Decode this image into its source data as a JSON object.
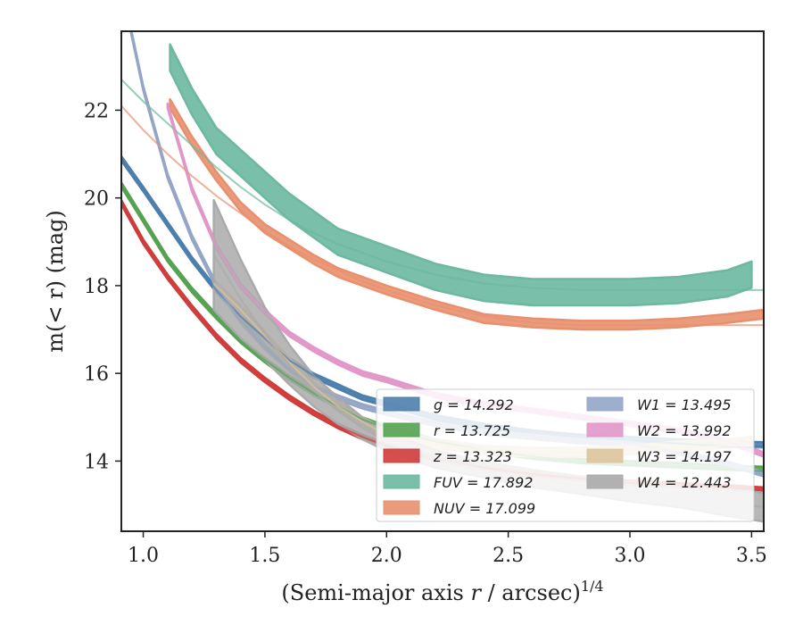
{
  "chart_data": {
    "type": "line",
    "xlabel_main": "(Semi-major axis ",
    "xlabel_var": "r",
    "xlabel_unit": " / arcsec)",
    "xlabel_sup": "1/4",
    "ylabel_main": "m(< r) (mag)",
    "xlim": [
      0.91,
      3.55
    ],
    "ylim": [
      23.8,
      12.4
    ],
    "xticks": [
      1.0,
      1.5,
      2.0,
      2.5,
      3.0,
      3.5
    ],
    "xtick_labels": [
      "1.0",
      "1.5",
      "2.0",
      "2.5",
      "3.0",
      "3.5"
    ],
    "yticks": [
      14,
      16,
      18,
      20,
      22
    ],
    "ytick_labels": [
      "14",
      "16",
      "18",
      "20",
      "22"
    ],
    "grid": false,
    "legend_position": "lower-right",
    "series": [
      {
        "name": "g",
        "legend_label": "g = 14.292",
        "color": "#4c7fac",
        "x": [
          0.91,
          1.0,
          1.1,
          1.2,
          1.3,
          1.4,
          1.5,
          1.6,
          1.7,
          1.8,
          1.9,
          2.0,
          2.2,
          2.4,
          2.6,
          2.8,
          3.0,
          3.2,
          3.4,
          3.55
        ],
        "y": [
          20.9,
          20.2,
          19.4,
          18.6,
          17.9,
          17.3,
          16.8,
          16.3,
          15.95,
          15.7,
          15.45,
          15.3,
          15.0,
          14.8,
          14.65,
          14.55,
          14.5,
          14.45,
          14.4,
          14.38
        ],
        "model": [
          20.9,
          20.2,
          19.4,
          18.6,
          17.9,
          17.3,
          16.8,
          16.3,
          15.95,
          15.7,
          15.45,
          15.3,
          15.0,
          14.8,
          14.65,
          14.55,
          14.48,
          14.4,
          14.33,
          14.3
        ],
        "band": 0.05
      },
      {
        "name": "r",
        "legend_label": "r = 13.725",
        "color": "#55a252",
        "x": [
          0.91,
          1.0,
          1.1,
          1.2,
          1.3,
          1.4,
          1.5,
          1.6,
          1.7,
          1.8,
          1.9,
          2.0,
          2.2,
          2.4,
          2.6,
          2.8,
          3.0,
          3.2,
          3.4,
          3.55
        ],
        "y": [
          20.3,
          19.5,
          18.6,
          17.9,
          17.3,
          16.75,
          16.3,
          15.9,
          15.55,
          15.25,
          14.95,
          14.75,
          14.45,
          14.25,
          14.1,
          14.0,
          13.95,
          13.9,
          13.85,
          13.82
        ],
        "model": [
          20.3,
          19.5,
          18.6,
          17.9,
          17.3,
          16.75,
          16.3,
          15.9,
          15.55,
          15.25,
          14.95,
          14.75,
          14.45,
          14.25,
          14.1,
          14.0,
          13.92,
          13.85,
          13.8,
          13.77
        ],
        "band": 0.05
      },
      {
        "name": "z",
        "legend_label": "z = 13.323",
        "color": "#d03c3c",
        "x": [
          0.91,
          1.0,
          1.1,
          1.2,
          1.3,
          1.4,
          1.5,
          1.6,
          1.7,
          1.8,
          1.9,
          2.0,
          2.2,
          2.4,
          2.6,
          2.8,
          3.0,
          3.2,
          3.4,
          3.55
        ],
        "y": [
          19.9,
          19.0,
          18.2,
          17.5,
          16.85,
          16.3,
          15.85,
          15.45,
          15.1,
          14.8,
          14.55,
          14.35,
          14.05,
          13.85,
          13.7,
          13.6,
          13.5,
          13.45,
          13.4,
          13.35
        ],
        "model": [
          19.9,
          19.0,
          18.2,
          17.5,
          16.85,
          16.3,
          15.85,
          15.45,
          15.1,
          14.8,
          14.55,
          14.35,
          14.05,
          13.85,
          13.7,
          13.6,
          13.5,
          13.45,
          13.4,
          13.35
        ],
        "band": 0.05
      },
      {
        "name": "FUV",
        "legend_label": "FUV = 17.892",
        "color": "#6cb8a0",
        "x": [
          1.11,
          1.2,
          1.3,
          1.4,
          1.5,
          1.6,
          1.7,
          1.8,
          1.9,
          2.0,
          2.2,
          2.4,
          2.6,
          2.8,
          3.0,
          3.2,
          3.4,
          3.5
        ],
        "y": [
          23.2,
          22.2,
          21.3,
          20.8,
          20.3,
          19.8,
          19.4,
          19.0,
          18.8,
          18.6,
          18.2,
          17.95,
          17.85,
          17.85,
          17.85,
          17.9,
          18.05,
          18.25
        ],
        "model_x": [
          0.91,
          1.0,
          1.1,
          1.2,
          1.3,
          1.4,
          1.5,
          1.6,
          1.7,
          1.8,
          1.9,
          2.0,
          2.2,
          2.4,
          2.6,
          2.8,
          3.0,
          3.2,
          3.4,
          3.55
        ],
        "model": [
          22.7,
          22.2,
          21.7,
          21.2,
          20.7,
          20.25,
          19.85,
          19.5,
          19.2,
          18.95,
          18.75,
          18.55,
          18.25,
          18.05,
          17.95,
          17.9,
          17.9,
          17.9,
          17.9,
          17.9
        ],
        "band": 0.3
      },
      {
        "name": "NUV",
        "legend_label": "NUV = 17.099",
        "color": "#e8906e",
        "x": [
          1.11,
          1.2,
          1.3,
          1.4,
          1.5,
          1.6,
          1.7,
          1.8,
          1.9,
          2.0,
          2.2,
          2.4,
          2.6,
          2.8,
          3.0,
          3.2,
          3.4,
          3.55
        ],
        "y": [
          22.15,
          21.3,
          20.5,
          19.8,
          19.3,
          18.95,
          18.6,
          18.3,
          18.1,
          17.9,
          17.55,
          17.25,
          17.15,
          17.1,
          17.1,
          17.15,
          17.25,
          17.35
        ],
        "model_x": [
          0.91,
          1.0,
          1.1,
          1.2,
          1.3,
          1.4,
          1.5,
          1.6,
          1.7,
          1.8,
          1.9,
          2.0,
          2.2,
          2.4,
          2.6,
          2.8,
          3.0,
          3.2,
          3.4,
          3.55
        ],
        "model": [
          22.1,
          21.55,
          21.0,
          20.5,
          20.05,
          19.65,
          19.25,
          18.9,
          18.6,
          18.35,
          18.1,
          17.9,
          17.55,
          17.3,
          17.15,
          17.1,
          17.1,
          17.1,
          17.1,
          17.1
        ],
        "band": 0.1
      },
      {
        "name": "W1",
        "legend_label": "W1 = 13.495",
        "color": "#94a5c8",
        "x": [
          0.95,
          1.0,
          1.1,
          1.2,
          1.3,
          1.4,
          1.5,
          1.6,
          1.7,
          1.8,
          1.9,
          2.0,
          2.2,
          2.4,
          2.6,
          2.8,
          3.0,
          3.2,
          3.4,
          3.55
        ],
        "y": [
          23.8,
          22.5,
          20.5,
          19.1,
          18.0,
          17.2,
          16.6,
          16.1,
          15.7,
          15.45,
          15.25,
          15.1,
          14.85,
          14.65,
          14.55,
          14.45,
          14.4,
          14.2,
          13.95,
          13.7
        ],
        "model": [
          23.8,
          22.5,
          20.5,
          19.1,
          18.0,
          17.2,
          16.6,
          16.1,
          15.7,
          15.45,
          15.25,
          15.1,
          14.85,
          14.65,
          14.55,
          14.45,
          14.4,
          14.2,
          13.95,
          13.7
        ],
        "band": 0.05
      },
      {
        "name": "W2",
        "legend_label": "W2 = 13.992",
        "color": "#e197c8",
        "x": [
          1.1,
          1.2,
          1.3,
          1.4,
          1.5,
          1.6,
          1.7,
          1.8,
          1.9,
          2.0,
          2.2,
          2.4,
          2.6,
          2.8,
          3.0,
          3.2,
          3.4,
          3.55
        ],
        "y": [
          22.1,
          20.2,
          18.9,
          18.0,
          17.4,
          16.9,
          16.55,
          16.25,
          16.0,
          15.85,
          15.5,
          15.3,
          15.15,
          15.0,
          14.85,
          14.7,
          14.45,
          14.15
        ],
        "model": [
          22.1,
          20.2,
          18.9,
          18.0,
          17.4,
          16.9,
          16.55,
          16.25,
          16.0,
          15.85,
          15.5,
          15.3,
          15.15,
          15.0,
          14.85,
          14.7,
          14.45,
          14.15
        ],
        "band": 0.05
      },
      {
        "name": "W3",
        "legend_label": "W3 = 14.197",
        "color": "#ddc49c",
        "x": [
          1.29,
          1.4,
          1.5,
          1.6,
          1.7,
          1.8,
          1.9,
          2.0,
          2.2,
          2.4,
          2.6,
          2.8,
          3.0,
          3.2,
          3.4,
          3.5
        ],
        "y": [
          18.05,
          17.45,
          16.85,
          16.25,
          15.7,
          15.25,
          14.9,
          14.6,
          14.4,
          14.25,
          14.2,
          14.2,
          14.25,
          14.35,
          14.4,
          14.45
        ],
        "model": [
          18.05,
          17.45,
          16.85,
          16.25,
          15.7,
          15.25,
          14.9,
          14.6,
          14.4,
          14.25,
          14.2,
          14.2,
          14.25,
          14.3,
          14.35,
          14.38
        ],
        "band": 0.1
      },
      {
        "name": "W4",
        "legend_label": "W4 = 12.443",
        "color": "#aaaaaa",
        "x": [
          1.29,
          1.4,
          1.5,
          1.6,
          1.7,
          1.8,
          1.9,
          2.0,
          2.2,
          2.4,
          2.6,
          2.8,
          3.0,
          3.2,
          3.4,
          3.55
        ],
        "y": [
          18.7,
          17.7,
          16.9,
          16.2,
          15.6,
          15.15,
          14.75,
          14.45,
          14.05,
          13.8,
          13.6,
          13.45,
          13.3,
          13.2,
          13.05,
          12.95
        ],
        "band_widths": [
          1.25,
          0.9,
          0.6,
          0.45,
          0.35,
          0.3,
          0.25,
          0.22,
          0.2,
          0.18,
          0.2,
          0.2,
          0.22,
          0.25,
          0.3,
          0.33
        ],
        "model": [
          18.7,
          17.7,
          16.9,
          16.2,
          15.6,
          15.15,
          14.75,
          14.45,
          14.05,
          13.8,
          13.6,
          13.45,
          13.3,
          13.2,
          13.05,
          12.95
        ]
      }
    ]
  }
}
